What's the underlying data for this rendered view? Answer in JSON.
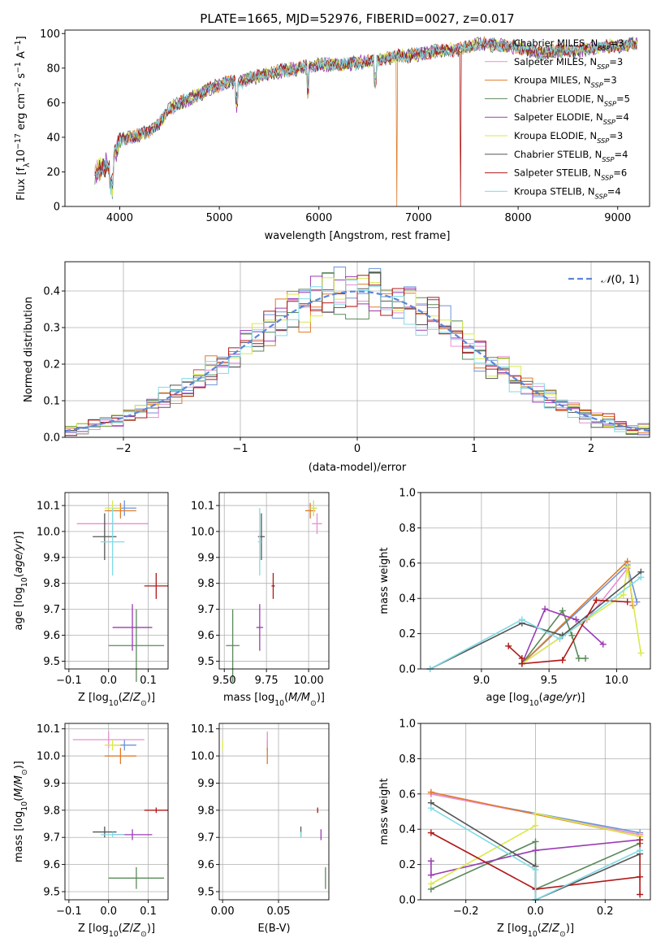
{
  "figure": {
    "title": "PLATE=1665, MJD=52976, FIBERID=0027, z=0.017"
  },
  "colors": {
    "chabrier_miles": "#6b93d6",
    "salpeter_miles": "#e88fd0",
    "kroupa_miles": "#e07b2a",
    "chabrier_elodie": "#5a8a5a",
    "salpeter_elodie": "#9b3bb5",
    "kroupa_elodie": "#d8ea4a",
    "chabrier_stelib": "#555555",
    "salpeter_stelib": "#b01818",
    "kroupa_stelib": "#7fdbe6",
    "gauss": "#5b85d9"
  },
  "models": [
    {
      "key": "chabrier_miles",
      "name": "Chabrier MILES, N",
      "nssp": "3"
    },
    {
      "key": "salpeter_miles",
      "name": "Salpeter MILES, N",
      "nssp": "3"
    },
    {
      "key": "kroupa_miles",
      "name": "Kroupa MILES, N",
      "nssp": "3"
    },
    {
      "key": "chabrier_elodie",
      "name": "Chabrier ELODIE, N",
      "nssp": "5"
    },
    {
      "key": "salpeter_elodie",
      "name": "Salpeter ELODIE, N",
      "nssp": "4"
    },
    {
      "key": "kroupa_elodie",
      "name": "Kroupa ELODIE, N",
      "nssp": "3"
    },
    {
      "key": "chabrier_stelib",
      "name": "Chabrier STELIB, N",
      "nssp": "4"
    },
    {
      "key": "salpeter_stelib",
      "name": "Salpeter STELIB, N",
      "nssp": "6"
    },
    {
      "key": "kroupa_stelib",
      "name": "Kroupa STELIB, N",
      "nssp": "4"
    }
  ],
  "legend_sub": "SSP",
  "chart_data": [
    {
      "id": "spectrum",
      "type": "line",
      "xlabel": "wavelength [Angstrom, rest frame]",
      "ylabel": "Flux [f",
      "xlim": [
        3450,
        9320
      ],
      "ylim": [
        0,
        102
      ],
      "xticks": [
        4000,
        5000,
        6000,
        7000,
        8000,
        9000
      ],
      "yticks": [
        0,
        20,
        40,
        60,
        80,
        100
      ],
      "envelope_x": [
        3750,
        3800,
        3900,
        4000,
        4100,
        4200,
        4300,
        4400,
        4500,
        4600,
        4700,
        4800,
        4900,
        5000,
        5100,
        5200,
        5300,
        5400,
        5500,
        5600,
        5800,
        6000,
        6200,
        6400,
        6600,
        6800,
        7000,
        7200,
        7400,
        7600,
        7800,
        8000,
        8200,
        8400,
        8600,
        8800,
        9000,
        9200
      ],
      "envelope_y": [
        18,
        22,
        24,
        38,
        40,
        41,
        44,
        48,
        56,
        60,
        62,
        65,
        68,
        70,
        72,
        72,
        74,
        75,
        77,
        78,
        80,
        82,
        82,
        83,
        85,
        87,
        88,
        90,
        91,
        94,
        93,
        92,
        89,
        90,
        90,
        92,
        93,
        94
      ],
      "dips": [
        {
          "series": "kroupa_miles",
          "x": 6785,
          "y": 0
        },
        {
          "series": "salpeter_stelib",
          "x": 7420,
          "y": 0
        }
      ]
    },
    {
      "id": "residuals",
      "type": "histogram",
      "xlabel": "(data-model)/error",
      "ylabel": "Normed distribution",
      "xlim": [
        -2.5,
        2.5
      ],
      "ylim": [
        0,
        0.48
      ],
      "xticks": [
        -2,
        -1,
        0,
        1,
        2
      ],
      "yticks": [
        0.0,
        0.1,
        0.2,
        0.3,
        0.4
      ],
      "gaussian_label": "(0, 1)"
    },
    {
      "id": "age_vs_Z",
      "type": "scatter",
      "xlabel": "Z [log",
      "ylabel": "age  [log",
      "xlim": [
        -0.11,
        0.15
      ],
      "ylim": [
        9.47,
        10.15
      ],
      "xticks": [
        -0.1,
        0.0,
        0.1
      ],
      "yticks": [
        9.5,
        9.6,
        9.7,
        9.8,
        9.9,
        10.0,
        10.1
      ],
      "points": [
        {
          "s": "chabrier_miles",
          "x": 0.04,
          "y": 10.09,
          "ex": 0.03,
          "ey": 0.03
        },
        {
          "s": "salpeter_miles",
          "x": 0.01,
          "y": 10.03,
          "ex": 0.09,
          "ey": 0.04
        },
        {
          "s": "kroupa_miles",
          "x": 0.03,
          "y": 10.08,
          "ex": 0.04,
          "ey": 0.03
        },
        {
          "s": "chabrier_elodie",
          "x": 0.07,
          "y": 9.56,
          "ex": 0.07,
          "ey": 0.14
        },
        {
          "s": "salpeter_elodie",
          "x": 0.06,
          "y": 9.63,
          "ex": 0.05,
          "ey": 0.09
        },
        {
          "s": "kroupa_elodie",
          "x": 0.01,
          "y": 10.09,
          "ex": 0.02,
          "ey": 0.03
        },
        {
          "s": "chabrier_stelib",
          "x": -0.01,
          "y": 9.98,
          "ex": 0.03,
          "ey": 0.09
        },
        {
          "s": "salpeter_stelib",
          "x": 0.12,
          "y": 9.79,
          "ex": 0.03,
          "ey": 0.05
        },
        {
          "s": "kroupa_stelib",
          "x": 0.01,
          "y": 9.96,
          "ex": 0.03,
          "ey": 0.13
        }
      ]
    },
    {
      "id": "age_vs_mass",
      "type": "scatter",
      "xlabel": "mass [log",
      "ylabel": "",
      "xlim": [
        9.47,
        10.12
      ],
      "ylim": [
        9.47,
        10.15
      ],
      "xticks": [
        9.5,
        9.75,
        10.0
      ],
      "xtick_labels": [
        "9.50",
        "9.75",
        "10.00"
      ],
      "yticks": [
        9.5,
        9.6,
        9.7,
        9.8,
        9.9,
        10.0,
        10.1
      ],
      "points": [
        {
          "s": "chabrier_miles",
          "x": 10.03,
          "y": 10.09,
          "ex": 0.02,
          "ey": 0.03
        },
        {
          "s": "salpeter_miles",
          "x": 10.05,
          "y": 10.03,
          "ex": 0.03,
          "ey": 0.04
        },
        {
          "s": "kroupa_miles",
          "x": 10.01,
          "y": 10.08,
          "ex": 0.03,
          "ey": 0.03
        },
        {
          "s": "chabrier_elodie",
          "x": 9.55,
          "y": 9.56,
          "ex": 0.04,
          "ey": 0.14
        },
        {
          "s": "salpeter_elodie",
          "x": 9.71,
          "y": 9.63,
          "ex": 0.02,
          "ey": 0.09
        },
        {
          "s": "kroupa_elodie",
          "x": 10.03,
          "y": 10.09,
          "ex": 0.02,
          "ey": 0.03
        },
        {
          "s": "chabrier_stelib",
          "x": 9.72,
          "y": 9.98,
          "ex": 0.02,
          "ey": 0.09
        },
        {
          "s": "salpeter_stelib",
          "x": 9.79,
          "y": 9.79,
          "ex": 0.01,
          "ey": 0.05
        },
        {
          "s": "kroupa_stelib",
          "x": 9.71,
          "y": 9.96,
          "ex": 0.01,
          "ey": 0.13
        }
      ]
    },
    {
      "id": "weight_vs_age",
      "type": "line",
      "xlabel": "age  [log",
      "ylabel": "mass weight",
      "xlim": [
        8.55,
        10.25
      ],
      "ylim": [
        0,
        1.0
      ],
      "xticks": [
        9.0,
        9.5,
        10.0
      ],
      "yticks": [
        0.0,
        0.2,
        0.4,
        0.6,
        0.8,
        1.0
      ],
      "series": [
        {
          "s": "chabrier_miles",
          "x": [
            9.3,
            10.08,
            10.15
          ],
          "y": [
            0.03,
            0.59,
            0.38
          ]
        },
        {
          "s": "salpeter_miles",
          "x": [
            9.3,
            9.78,
            10.08,
            10.12
          ],
          "y": [
            0.03,
            0.28,
            0.57,
            0.38
          ]
        },
        {
          "s": "kroupa_miles",
          "x": [
            9.3,
            10.08,
            10.12
          ],
          "y": [
            0.03,
            0.61,
            0.36
          ]
        },
        {
          "s": "chabrier_elodie",
          "x": [
            9.3,
            9.6,
            9.67,
            9.72,
            9.77
          ],
          "y": [
            0.03,
            0.33,
            0.19,
            0.06,
            0.06
          ]
        },
        {
          "s": "salpeter_elodie",
          "x": [
            9.3,
            9.47,
            9.7,
            9.9
          ],
          "y": [
            0.03,
            0.34,
            0.28,
            0.14
          ]
        },
        {
          "s": "kroupa_elodie",
          "x": [
            9.3,
            10.05,
            10.08,
            10.18
          ],
          "y": [
            0.03,
            0.42,
            0.58,
            0.09
          ]
        },
        {
          "s": "chabrier_stelib",
          "x": [
            8.62,
            9.3,
            9.6,
            10.18
          ],
          "y": [
            0.0,
            0.26,
            0.19,
            0.55
          ]
        },
        {
          "s": "salpeter_stelib",
          "x": [
            9.2,
            9.3,
            9.3,
            9.6,
            9.85,
            10.08
          ],
          "y": [
            0.13,
            0.06,
            0.03,
            0.05,
            0.39,
            0.38
          ]
        },
        {
          "s": "kroupa_stelib",
          "x": [
            8.62,
            9.3,
            9.58,
            10.18
          ],
          "y": [
            0.0,
            0.28,
            0.17,
            0.52
          ]
        }
      ]
    },
    {
      "id": "mass_vs_Z",
      "type": "scatter",
      "xlabel": "Z [log",
      "ylabel": "mass [log",
      "xlim": [
        -0.11,
        0.15
      ],
      "ylim": [
        9.47,
        10.12
      ],
      "xticks": [
        -0.1,
        0.0,
        0.1
      ],
      "yticks": [
        9.5,
        9.6,
        9.7,
        9.8,
        9.9,
        10.0,
        10.1
      ],
      "points": [
        {
          "s": "chabrier_miles",
          "x": 0.04,
          "y": 10.04,
          "ex": 0.03,
          "ey": 0.02
        },
        {
          "s": "salpeter_miles",
          "x": 0.0,
          "y": 10.06,
          "ex": 0.09,
          "ey": 0.03
        },
        {
          "s": "kroupa_miles",
          "x": 0.03,
          "y": 10.0,
          "ex": 0.04,
          "ey": 0.03
        },
        {
          "s": "chabrier_elodie",
          "x": 0.07,
          "y": 9.55,
          "ex": 0.07,
          "ey": 0.04
        },
        {
          "s": "salpeter_elodie",
          "x": 0.06,
          "y": 9.71,
          "ex": 0.05,
          "ey": 0.02
        },
        {
          "s": "kroupa_elodie",
          "x": 0.01,
          "y": 10.04,
          "ex": 0.02,
          "ey": 0.02
        },
        {
          "s": "chabrier_stelib",
          "x": -0.01,
          "y": 9.72,
          "ex": 0.03,
          "ey": 0.02
        },
        {
          "s": "salpeter_stelib",
          "x": 0.12,
          "y": 9.8,
          "ex": 0.03,
          "ey": 0.01
        },
        {
          "s": "kroupa_stelib",
          "x": 0.01,
          "y": 9.71,
          "ex": 0.03,
          "ey": 0.01
        }
      ]
    },
    {
      "id": "mass_vs_ebv",
      "type": "scatter",
      "xlabel": "E(B-V)",
      "ylabel": "",
      "xlim": [
        -0.003,
        0.095
      ],
      "ylim": [
        9.47,
        10.12
      ],
      "xticks": [
        0.0,
        0.05
      ],
      "xtick_labels": [
        "0.00",
        "0.05"
      ],
      "yticks": [
        9.5,
        9.6,
        9.7,
        9.8,
        9.9,
        10.0,
        10.1
      ],
      "points": [
        {
          "s": "chabrier_miles",
          "x": 0.04,
          "y": 10.04,
          "ex": 0,
          "ey": 0.02
        },
        {
          "s": "salpeter_miles",
          "x": 0.04,
          "y": 10.06,
          "ex": 0,
          "ey": 0.03
        },
        {
          "s": "kroupa_miles",
          "x": 0.04,
          "y": 10.0,
          "ex": 0,
          "ey": 0.03
        },
        {
          "s": "chabrier_elodie",
          "x": 0.092,
          "y": 9.55,
          "ex": 0,
          "ey": 0.04
        },
        {
          "s": "salpeter_elodie",
          "x": 0.088,
          "y": 9.71,
          "ex": 0,
          "ey": 0.02
        },
        {
          "s": "kroupa_elodie",
          "x": 0.0,
          "y": 10.04,
          "ex": 0,
          "ey": 0.02
        },
        {
          "s": "chabrier_stelib",
          "x": 0.07,
          "y": 9.72,
          "ex": 0,
          "ey": 0.02
        },
        {
          "s": "salpeter_stelib",
          "x": 0.085,
          "y": 9.8,
          "ex": 0,
          "ey": 0.01
        },
        {
          "s": "kroupa_stelib",
          "x": 0.07,
          "y": 9.71,
          "ex": 0,
          "ey": 0.01
        }
      ]
    },
    {
      "id": "weight_vs_Z",
      "type": "line",
      "xlabel": "Z [log",
      "ylabel": "mass weight",
      "xlim": [
        -0.33,
        0.33
      ],
      "ylim": [
        0,
        1.0
      ],
      "xticks": [
        -0.2,
        0.0,
        0.2
      ],
      "yticks": [
        0.0,
        0.2,
        0.4,
        0.6,
        0.8,
        1.0
      ],
      "series": [
        {
          "s": "chabrier_miles",
          "x": [
            -0.3,
            0.3
          ],
          "y": [
            0.6,
            0.38
          ]
        },
        {
          "s": "salpeter_miles",
          "x": [
            -0.3,
            0.3
          ],
          "y": [
            0.6,
            0.37
          ]
        },
        {
          "s": "kroupa_miles",
          "x": [
            -0.3,
            0.3
          ],
          "y": [
            0.61,
            0.36
          ]
        },
        {
          "s": "chabrier_elodie",
          "x": [
            -0.3,
            0.0,
            0.0,
            0.3
          ],
          "y": [
            0.06,
            0.33,
            0.06,
            0.32
          ]
        },
        {
          "s": "salpeter_elodie",
          "x": [
            -0.3,
            -0.3,
            0.0,
            0.3
          ],
          "y": [
            0.22,
            0.14,
            0.28,
            0.34
          ]
        },
        {
          "s": "kroupa_elodie",
          "x": [
            -0.3,
            0.0,
            0.0,
            0.3
          ],
          "y": [
            0.09,
            0.42,
            0.49,
            0.36
          ]
        },
        {
          "s": "chabrier_stelib",
          "x": [
            -0.3,
            0.0,
            0.0,
            0.3
          ],
          "y": [
            0.55,
            0.19,
            0.0,
            0.26
          ]
        },
        {
          "s": "salpeter_stelib",
          "x": [
            -0.3,
            0.0,
            0.3,
            0.3,
            0.3
          ],
          "y": [
            0.38,
            0.06,
            0.13,
            0.34,
            0.03
          ]
        },
        {
          "s": "kroupa_stelib",
          "x": [
            -0.3,
            0.0,
            0.0,
            0.3
          ],
          "y": [
            0.52,
            0.17,
            0.0,
            0.28
          ]
        }
      ]
    }
  ]
}
